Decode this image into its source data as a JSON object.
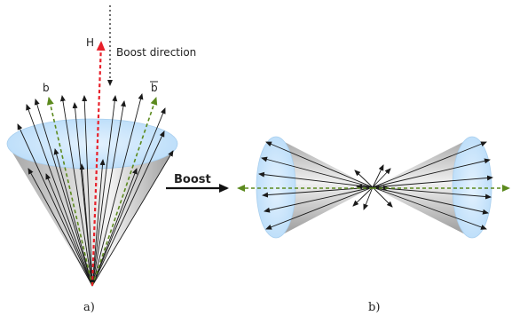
{
  "panel_a": {
    "higgs_label": "H",
    "boost_direction_label": "Boost direction",
    "b_label": "b",
    "bbar_label": "b",
    "caption": "a)"
  },
  "transition": {
    "boost_label": "Boost"
  },
  "panel_b": {
    "caption": "b)"
  },
  "colors": {
    "cone_fill": "#bfe0fb",
    "cone_body_dark": "#808080",
    "higgs_arrow": "#e8202a",
    "b_arrow": "#5c8a1e",
    "particle_arrow": "#1a1a1a"
  }
}
